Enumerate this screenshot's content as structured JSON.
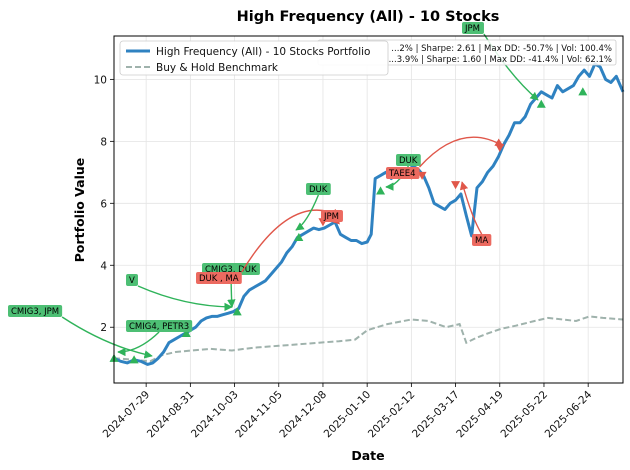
{
  "chart_data": {
    "type": "line",
    "title": "High Frequency (All) - 10 Stocks",
    "xlabel": "Date",
    "ylabel": "Portfolio Value",
    "x_range": [
      "2024-07-05",
      "2025-07-20"
    ],
    "ylim": [
      0.2,
      11.4
    ],
    "x_ticks": [
      "2024-07-29",
      "2024-08-31",
      "2024-10-03",
      "2024-11-05",
      "2024-12-08",
      "2025-01-10",
      "2025-02-12",
      "2025-03-17",
      "2025-04-19",
      "2025-05-22",
      "2025-06-24"
    ],
    "y_ticks": [
      2,
      4,
      6,
      8,
      10
    ],
    "grid": true,
    "legend_position": "top-left",
    "colors": {
      "portfolio": "#2f82c1",
      "benchmark": "#9fb2ac",
      "buy": "#2fb35a",
      "sell": "#e0574a",
      "buy_box": "#4dbf74",
      "sell_box": "#ec6a60"
    },
    "series": [
      {
        "name": "High Frequency (All) - 10 Stocks Portfolio",
        "style": "solid",
        "points": [
          [
            "2024-07-05",
            1.0
          ],
          [
            "2024-07-10",
            0.9
          ],
          [
            "2024-07-15",
            0.85
          ],
          [
            "2024-07-20",
            0.95
          ],
          [
            "2024-07-25",
            0.9
          ],
          [
            "2024-07-30",
            0.8
          ],
          [
            "2024-08-03",
            0.85
          ],
          [
            "2024-08-07",
            1.0
          ],
          [
            "2024-08-11",
            1.2
          ],
          [
            "2024-08-15",
            1.5
          ],
          [
            "2024-08-19",
            1.6
          ],
          [
            "2024-08-23",
            1.7
          ],
          [
            "2024-08-27",
            1.8
          ],
          [
            "2024-08-31",
            1.9
          ],
          [
            "2024-09-04",
            2.0
          ],
          [
            "2024-09-08",
            2.2
          ],
          [
            "2024-09-12",
            2.3
          ],
          [
            "2024-09-16",
            2.35
          ],
          [
            "2024-09-20",
            2.35
          ],
          [
            "2024-09-24",
            2.4
          ],
          [
            "2024-09-28",
            2.45
          ],
          [
            "2024-10-02",
            2.5
          ],
          [
            "2024-10-06",
            2.6
          ],
          [
            "2024-10-10",
            3.0
          ],
          [
            "2024-10-14",
            3.2
          ],
          [
            "2024-10-18",
            3.3
          ],
          [
            "2024-10-22",
            3.4
          ],
          [
            "2024-10-26",
            3.5
          ],
          [
            "2024-10-30",
            3.7
          ],
          [
            "2024-11-03",
            3.9
          ],
          [
            "2024-11-07",
            4.1
          ],
          [
            "2024-11-11",
            4.4
          ],
          [
            "2024-11-15",
            4.6
          ],
          [
            "2024-11-19",
            4.9
          ],
          [
            "2024-11-23",
            5.0
          ],
          [
            "2024-11-27",
            5.1
          ],
          [
            "2024-12-01",
            5.2
          ],
          [
            "2024-12-05",
            5.15
          ],
          [
            "2024-12-09",
            5.2
          ],
          [
            "2024-12-13",
            5.3
          ],
          [
            "2024-12-17",
            5.4
          ],
          [
            "2024-12-21",
            5.0
          ],
          [
            "2024-12-25",
            4.9
          ],
          [
            "2024-12-29",
            4.8
          ],
          [
            "2025-01-02",
            4.8
          ],
          [
            "2025-01-06",
            4.7
          ],
          [
            "2025-01-10",
            4.75
          ],
          [
            "2025-01-13",
            5.0
          ],
          [
            "2025-01-16",
            6.8
          ],
          [
            "2025-01-20",
            6.9
          ],
          [
            "2025-01-24",
            7.0
          ],
          [
            "2025-01-28",
            6.8
          ],
          [
            "2025-02-01",
            7.1
          ],
          [
            "2025-02-05",
            7.1
          ],
          [
            "2025-02-09",
            7.0
          ],
          [
            "2025-02-13",
            7.2
          ],
          [
            "2025-02-17",
            7.1
          ],
          [
            "2025-02-21",
            6.9
          ],
          [
            "2025-02-25",
            6.5
          ],
          [
            "2025-03-01",
            6.0
          ],
          [
            "2025-03-05",
            5.9
          ],
          [
            "2025-03-09",
            5.8
          ],
          [
            "2025-03-13",
            6.0
          ],
          [
            "2025-03-17",
            6.1
          ],
          [
            "2025-03-21",
            6.3
          ],
          [
            "2025-03-25",
            5.6
          ],
          [
            "2025-03-29",
            4.95
          ],
          [
            "2025-04-02",
            6.5
          ],
          [
            "2025-04-06",
            6.7
          ],
          [
            "2025-04-10",
            7.0
          ],
          [
            "2025-04-14",
            7.2
          ],
          [
            "2025-04-18",
            7.5
          ],
          [
            "2025-04-22",
            7.9
          ],
          [
            "2025-04-26",
            8.2
          ],
          [
            "2025-04-30",
            8.6
          ],
          [
            "2025-05-04",
            8.6
          ],
          [
            "2025-05-08",
            8.8
          ],
          [
            "2025-05-12",
            9.2
          ],
          [
            "2025-05-16",
            9.4
          ],
          [
            "2025-05-20",
            9.6
          ],
          [
            "2025-05-24",
            9.5
          ],
          [
            "2025-05-28",
            9.4
          ],
          [
            "2025-06-01",
            9.8
          ],
          [
            "2025-06-05",
            9.6
          ],
          [
            "2025-06-09",
            9.7
          ],
          [
            "2025-06-13",
            9.8
          ],
          [
            "2025-06-17",
            10.1
          ],
          [
            "2025-06-21",
            10.3
          ],
          [
            "2025-06-25",
            10.1
          ],
          [
            "2025-06-29",
            10.5
          ],
          [
            "2025-07-03",
            10.4
          ],
          [
            "2025-07-07",
            10.0
          ],
          [
            "2025-07-11",
            9.9
          ],
          [
            "2025-07-15",
            10.1
          ],
          [
            "2025-07-20",
            9.6
          ]
        ]
      },
      {
        "name": "Buy & Hold Benchmark",
        "style": "dashed",
        "points": [
          [
            "2024-07-05",
            1.0
          ],
          [
            "2024-07-20",
            0.95
          ],
          [
            "2024-08-01",
            0.9
          ],
          [
            "2024-08-10",
            1.1
          ],
          [
            "2024-08-20",
            1.2
          ],
          [
            "2024-09-01",
            1.25
          ],
          [
            "2024-09-15",
            1.3
          ],
          [
            "2024-10-01",
            1.25
          ],
          [
            "2024-10-10",
            1.3
          ],
          [
            "2024-10-20",
            1.35
          ],
          [
            "2024-11-05",
            1.4
          ],
          [
            "2024-11-20",
            1.45
          ],
          [
            "2024-12-05",
            1.5
          ],
          [
            "2024-12-20",
            1.55
          ],
          [
            "2025-01-01",
            1.6
          ],
          [
            "2025-01-10",
            1.9
          ],
          [
            "2025-01-25",
            2.1
          ],
          [
            "2025-02-12",
            2.25
          ],
          [
            "2025-02-25",
            2.2
          ],
          [
            "2025-03-10",
            2.0
          ],
          [
            "2025-03-20",
            2.1
          ],
          [
            "2025-03-25",
            1.5
          ],
          [
            "2025-04-01",
            1.65
          ],
          [
            "2025-04-10",
            1.8
          ],
          [
            "2025-04-20",
            1.95
          ],
          [
            "2025-05-01",
            2.05
          ],
          [
            "2025-05-15",
            2.2
          ],
          [
            "2025-05-25",
            2.3
          ],
          [
            "2025-06-05",
            2.25
          ],
          [
            "2025-06-15",
            2.2
          ],
          [
            "2025-06-25",
            2.35
          ],
          [
            "2025-07-05",
            2.3
          ],
          [
            "2025-07-20",
            2.25
          ]
        ]
      }
    ],
    "stats_box": {
      "line1": "...2% | Sharpe: 2.61 | Max DD: -50.7% | Vol: 100.4%",
      "line2": "...3.9% | Sharpe: 1.60 | Max DD: -41.4% | Vol: 62.1%"
    },
    "markers": [
      {
        "type": "buy",
        "date": "2024-07-05",
        "value": 1.0
      },
      {
        "type": "buy",
        "date": "2024-07-20",
        "value": 0.95
      },
      {
        "type": "buy",
        "date": "2024-08-28",
        "value": 1.8
      },
      {
        "type": "buy",
        "date": "2024-10-05",
        "value": 2.5
      },
      {
        "type": "buy",
        "date": "2024-11-20",
        "value": 4.9
      },
      {
        "type": "buy",
        "date": "2025-01-20",
        "value": 6.4
      },
      {
        "type": "buy",
        "date": "2025-05-20",
        "value": 9.2
      },
      {
        "type": "buy",
        "date": "2025-06-20",
        "value": 9.6
      },
      {
        "type": "sell",
        "date": "2024-12-08",
        "value": 5.4
      },
      {
        "type": "sell",
        "date": "2025-02-12",
        "value": 6.9
      },
      {
        "type": "sell",
        "date": "2025-02-20",
        "value": 6.9
      },
      {
        "type": "sell",
        "date": "2025-03-17",
        "value": 6.6
      },
      {
        "type": "sell",
        "date": "2025-04-19",
        "value": 7.8
      }
    ],
    "annotations": [
      {
        "text": "CMIG3, JPM",
        "type": "buy",
        "box": [
          8,
          305
        ],
        "arrow_to": [
          152,
          356
        ]
      },
      {
        "text": "CMIG4, PETR3",
        "type": "buy",
        "box": [
          126,
          320
        ],
        "arrow_to": [
          118,
          352
        ]
      },
      {
        "text": "V",
        "type": "buy",
        "box": [
          126,
          274
        ],
        "arrow_to": [
          232,
          307
        ]
      },
      {
        "text": "CMIG3, DUK",
        "type": "buy",
        "box": [
          202,
          263
        ],
        "arrow_to": [
          232,
          307
        ]
      },
      {
        "text": "DUK , MA",
        "type": "sell",
        "box": [
          196,
          272
        ],
        "arrow_to": [
          340,
          216
        ],
        "curve": true
      },
      {
        "text": "DUK",
        "type": "buy",
        "box": [
          306,
          183
        ],
        "arrow_to": [
          296,
          230
        ]
      },
      {
        "text": "JPM",
        "type": "sell",
        "box": [
          321,
          210
        ],
        "arrow_to": [
          338,
          216
        ]
      },
      {
        "text": "DUK",
        "type": "buy",
        "box": [
          396,
          154
        ],
        "arrow_to": [
          386,
          187
        ]
      },
      {
        "text": "TAEE4",
        "type": "sell",
        "box": [
          386,
          167
        ],
        "arrow_to": [
          503,
          146
        ],
        "curve": true
      },
      {
        "text": "MA",
        "type": "sell",
        "box": [
          472,
          234
        ],
        "arrow_to": [
          462,
          182
        ]
      },
      {
        "text": "JPM",
        "type": "buy",
        "box": [
          462,
          22
        ],
        "arrow_to": [
          538,
          100
        ]
      }
    ]
  }
}
